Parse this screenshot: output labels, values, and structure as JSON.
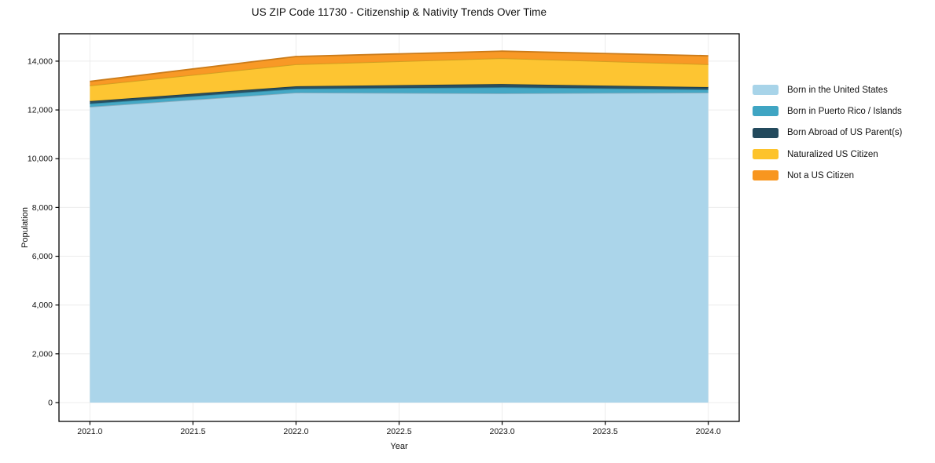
{
  "chart": {
    "title": "US ZIP Code 11730 - Citizenship & Nativity Trends Over Time",
    "xlabel": "Year",
    "ylabel": "Population"
  },
  "chart_data": {
    "type": "area",
    "stacked": true,
    "title": "US ZIP Code 11730 - Citizenship & Nativity Trends Over Time",
    "xlabel": "Year",
    "ylabel": "Population",
    "x": [
      2021,
      2022,
      2023,
      2024
    ],
    "series": [
      {
        "name": "Born in the United States",
        "color": "#a8d4e9",
        "values": [
          12130,
          12710,
          12680,
          12710
        ]
      },
      {
        "name": "Born in Puerto Rico / Islands",
        "color": "#3fa5c3",
        "values": [
          130,
          160,
          250,
          130
        ]
      },
      {
        "name": "Born Abroad of US Parent(s)",
        "color": "#234a5d",
        "values": [
          100,
          100,
          130,
          95
        ]
      },
      {
        "name": "Naturalized US Citizen",
        "color": "#fdc32b",
        "values": [
          640,
          900,
          1060,
          935
        ]
      },
      {
        "name": "Not a US Citizen",
        "color": "#f8961f",
        "values": [
          170,
          320,
          290,
          350
        ]
      }
    ],
    "totals": [
      13170,
      14190,
      14410,
      14220
    ],
    "xticks": {
      "values": [
        2021,
        2021.5,
        2022,
        2022.5,
        2023,
        2023.5,
        2024
      ],
      "labels": [
        "2021.0",
        "2021.5",
        "2022.0",
        "2022.5",
        "2023.0",
        "2023.5",
        "2024.0"
      ]
    },
    "yticks": {
      "values": [
        0,
        2000,
        4000,
        6000,
        8000,
        10000,
        12000,
        14000
      ],
      "labels": [
        "0",
        "2,000",
        "4,000",
        "6,000",
        "8,000",
        "10,000",
        "12,000",
        "14,000"
      ]
    },
    "xlim": [
      2020.85,
      2024.15
    ],
    "ylim": [
      -772,
      15124
    ],
    "grid": true,
    "grid_color": "#ececec",
    "spine_color": "#000000",
    "legend_position": "right-outside-top"
  }
}
